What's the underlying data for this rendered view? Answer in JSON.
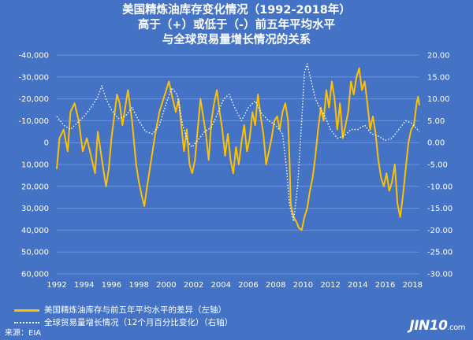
{
  "title": {
    "line1": "美国精炼油库存变化情况（1992-2018年）",
    "line2": "高于（+）或低于（-）前五年平均水平",
    "line3": "与全球贸易量增长情况的关系"
  },
  "legend": {
    "series1": "美国精炼油库存与前五年平均水平的差异（左轴）",
    "series2": "全球贸易量增长情况（12个月百分比变化）（右轴）"
  },
  "source": "来源：EIA",
  "logo": {
    "main": "JIN10",
    "suffix": ".com"
  },
  "colors": {
    "background": "#4472c4",
    "series1": "#ffc000",
    "series2": "#ffffff"
  },
  "chart_data": {
    "type": "line",
    "x_ticks": [
      "1992",
      "1994",
      "1996",
      "1998",
      "2000",
      "2002",
      "2004",
      "2006",
      "2008",
      "2010",
      "2012",
      "2014",
      "2016",
      "2018"
    ],
    "y_left": {
      "reversed": true,
      "range": [
        -40000,
        60000
      ],
      "ticks": [
        "-40,000",
        "-30,000",
        "-20,000",
        "-10,000",
        "0",
        "10,000",
        "20,000",
        "30,000",
        "40,000",
        "50,000",
        "60,000"
      ]
    },
    "y_right": {
      "range": [
        -30,
        20
      ],
      "ticks": [
        "20.00",
        "15.00",
        "10.00",
        "5.00",
        "0.00",
        "-5.00",
        "-10.00",
        "-15.00",
        "-20.00",
        "-25.00",
        "-30.00"
      ]
    },
    "series": [
      {
        "axis": "left",
        "style": "solid",
        "points": [
          [
            1992.0,
            12000
          ],
          [
            1992.2,
            -2000
          ],
          [
            1992.5,
            -6000
          ],
          [
            1992.8,
            4000
          ],
          [
            1993.0,
            -14000
          ],
          [
            1993.3,
            -18000
          ],
          [
            1993.6,
            -10000
          ],
          [
            1993.9,
            4000
          ],
          [
            1994.2,
            -2000
          ],
          [
            1994.5,
            6000
          ],
          [
            1994.8,
            14000
          ],
          [
            1995.0,
            -5000
          ],
          [
            1995.3,
            8000
          ],
          [
            1995.6,
            20000
          ],
          [
            1995.8,
            12000
          ],
          [
            1996.0,
            -2000
          ],
          [
            1996.2,
            -12000
          ],
          [
            1996.4,
            -22000
          ],
          [
            1996.6,
            -18000
          ],
          [
            1996.8,
            -8000
          ],
          [
            1997.0,
            -16000
          ],
          [
            1997.2,
            -24000
          ],
          [
            1997.5,
            -10000
          ],
          [
            1997.8,
            10000
          ],
          [
            1998.0,
            18000
          ],
          [
            1998.2,
            24000
          ],
          [
            1998.4,
            29000
          ],
          [
            1998.6,
            20000
          ],
          [
            1998.9,
            8000
          ],
          [
            1999.2,
            -4000
          ],
          [
            1999.5,
            -14000
          ],
          [
            1999.8,
            -20000
          ],
          [
            2000.0,
            -24000
          ],
          [
            2000.2,
            -28000
          ],
          [
            2000.4,
            -22000
          ],
          [
            2000.7,
            -14000
          ],
          [
            2000.9,
            -20000
          ],
          [
            2001.1,
            -8000
          ],
          [
            2001.3,
            4000
          ],
          [
            2001.5,
            -6000
          ],
          [
            2001.7,
            10000
          ],
          [
            2001.9,
            14000
          ],
          [
            2002.1,
            8000
          ],
          [
            2002.3,
            -6000
          ],
          [
            2002.5,
            -20000
          ],
          [
            2002.7,
            -12000
          ],
          [
            2002.9,
            -4000
          ],
          [
            2003.1,
            8000
          ],
          [
            2003.3,
            -10000
          ],
          [
            2003.5,
            -18000
          ],
          [
            2003.7,
            -24000
          ],
          [
            2003.9,
            -14000
          ],
          [
            2004.1,
            -6000
          ],
          [
            2004.3,
            6000
          ],
          [
            2004.5,
            -4000
          ],
          [
            2004.7,
            8000
          ],
          [
            2004.9,
            14000
          ],
          [
            2005.1,
            2000
          ],
          [
            2005.3,
            10000
          ],
          [
            2005.5,
            0
          ],
          [
            2005.7,
            -8000
          ],
          [
            2005.9,
            4000
          ],
          [
            2006.1,
            -2000
          ],
          [
            2006.3,
            -14000
          ],
          [
            2006.5,
            -8000
          ],
          [
            2006.7,
            -22000
          ],
          [
            2006.9,
            -12000
          ],
          [
            2007.1,
            -4000
          ],
          [
            2007.3,
            10000
          ],
          [
            2007.5,
            4000
          ],
          [
            2007.7,
            -2000
          ],
          [
            2007.9,
            -10000
          ],
          [
            2008.1,
            -12000
          ],
          [
            2008.3,
            -6000
          ],
          [
            2008.5,
            -14000
          ],
          [
            2008.7,
            -18000
          ],
          [
            2008.9,
            -10000
          ],
          [
            2009.0,
            6000
          ],
          [
            2009.1,
            28000
          ],
          [
            2009.3,
            34000
          ],
          [
            2009.5,
            36000
          ],
          [
            2009.7,
            39000
          ],
          [
            2009.9,
            40000
          ],
          [
            2010.1,
            34000
          ],
          [
            2010.3,
            30000
          ],
          [
            2010.5,
            22000
          ],
          [
            2010.7,
            16000
          ],
          [
            2010.9,
            6000
          ],
          [
            2011.1,
            -6000
          ],
          [
            2011.3,
            -16000
          ],
          [
            2011.5,
            -10000
          ],
          [
            2011.7,
            -24000
          ],
          [
            2011.9,
            -16000
          ],
          [
            2012.1,
            -28000
          ],
          [
            2012.3,
            -20000
          ],
          [
            2012.5,
            -6000
          ],
          [
            2012.7,
            -18000
          ],
          [
            2012.9,
            -2000
          ],
          [
            2013.1,
            -8000
          ],
          [
            2013.3,
            -14000
          ],
          [
            2013.5,
            -28000
          ],
          [
            2013.7,
            -22000
          ],
          [
            2013.9,
            -30000
          ],
          [
            2014.1,
            -34000
          ],
          [
            2014.3,
            -24000
          ],
          [
            2014.5,
            -28000
          ],
          [
            2014.7,
            -18000
          ],
          [
            2014.9,
            -6000
          ],
          [
            2015.1,
            -12000
          ],
          [
            2015.3,
            -4000
          ],
          [
            2015.5,
            8000
          ],
          [
            2015.7,
            16000
          ],
          [
            2015.9,
            20000
          ],
          [
            2016.1,
            14000
          ],
          [
            2016.3,
            22000
          ],
          [
            2016.5,
            18000
          ],
          [
            2016.7,
            10000
          ],
          [
            2016.9,
            28000
          ],
          [
            2017.1,
            34000
          ],
          [
            2017.3,
            24000
          ],
          [
            2017.5,
            12000
          ],
          [
            2017.7,
            0
          ],
          [
            2017.9,
            -6000
          ],
          [
            2018.1,
            -8000
          ],
          [
            2018.3,
            -18000
          ],
          [
            2018.4,
            -21000
          ],
          [
            2018.5,
            -17000
          ]
        ]
      },
      {
        "axis": "right",
        "style": "dotted",
        "points": [
          [
            1992.0,
            6.0
          ],
          [
            1992.5,
            4.0
          ],
          [
            1993.0,
            3.0
          ],
          [
            1993.5,
            4.5
          ],
          [
            1994.0,
            6.0
          ],
          [
            1994.5,
            8.0
          ],
          [
            1995.0,
            10.5
          ],
          [
            1995.3,
            13.0
          ],
          [
            1995.6,
            10.0
          ],
          [
            1996.0,
            7.5
          ],
          [
            1996.5,
            5.5
          ],
          [
            1997.0,
            6.0
          ],
          [
            1997.5,
            8.0
          ],
          [
            1998.0,
            5.0
          ],
          [
            1998.5,
            2.5
          ],
          [
            1999.0,
            2.0
          ],
          [
            1999.5,
            4.0
          ],
          [
            2000.0,
            9.0
          ],
          [
            2000.4,
            12.5
          ],
          [
            2000.8,
            11.0
          ],
          [
            2001.2,
            4.0
          ],
          [
            2001.6,
            0.0
          ],
          [
            2001.9,
            -1.0
          ],
          [
            2002.3,
            0.5
          ],
          [
            2002.8,
            2.5
          ],
          [
            2003.3,
            3.5
          ],
          [
            2003.8,
            7.0
          ],
          [
            2004.2,
            10.0
          ],
          [
            2004.6,
            11.0
          ],
          [
            2005.0,
            8.0
          ],
          [
            2005.5,
            5.0
          ],
          [
            2006.0,
            8.0
          ],
          [
            2006.5,
            9.5
          ],
          [
            2007.0,
            6.5
          ],
          [
            2007.5,
            5.0
          ],
          [
            2008.0,
            4.0
          ],
          [
            2008.5,
            2.0
          ],
          [
            2008.8,
            -6.0
          ],
          [
            2009.0,
            -14.0
          ],
          [
            2009.3,
            -18.0
          ],
          [
            2009.6,
            -10.0
          ],
          [
            2009.9,
            5.0
          ],
          [
            2010.1,
            16.0
          ],
          [
            2010.3,
            18.0
          ],
          [
            2010.6,
            14.0
          ],
          [
            2010.9,
            10.0
          ],
          [
            2011.2,
            8.0
          ],
          [
            2011.6,
            6.0
          ],
          [
            2012.0,
            3.0
          ],
          [
            2012.5,
            1.0
          ],
          [
            2013.0,
            1.5
          ],
          [
            2013.5,
            3.0
          ],
          [
            2014.0,
            3.0
          ],
          [
            2014.5,
            4.0
          ],
          [
            2015.0,
            2.0
          ],
          [
            2015.5,
            1.5
          ],
          [
            2016.0,
            0.5
          ],
          [
            2016.5,
            1.0
          ],
          [
            2017.0,
            3.0
          ],
          [
            2017.5,
            5.0
          ],
          [
            2017.9,
            4.5
          ],
          [
            2018.2,
            3.5
          ],
          [
            2018.5,
            2.5
          ]
        ]
      }
    ]
  }
}
